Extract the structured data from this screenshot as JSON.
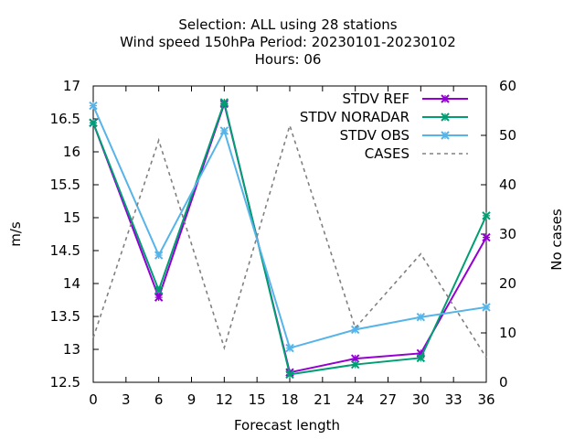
{
  "chart_data": {
    "type": "line",
    "title_lines": [
      "Selection: ALL using    28 stations",
      "Wind speed 150hPa   Period: 20230101-20230102",
      "Hours:  06"
    ],
    "xlabel": "Forecast length",
    "ylabel": "m/s",
    "y2label": "No cases",
    "x": [
      0,
      6,
      12,
      18,
      24,
      30,
      36
    ],
    "xlim": [
      0,
      36
    ],
    "xticks": [
      0,
      3,
      6,
      9,
      12,
      15,
      18,
      21,
      24,
      27,
      30,
      33,
      36
    ],
    "ylim": [
      12.5,
      17
    ],
    "yticks": [
      12.5,
      13,
      13.5,
      14,
      14.5,
      15,
      15.5,
      16,
      16.5,
      17
    ],
    "y2lim": [
      0,
      60
    ],
    "y2ticks": [
      0,
      10,
      20,
      30,
      40,
      50,
      60
    ],
    "grid": false,
    "legend_position": "top-right",
    "series": [
      {
        "name": "STDV REF",
        "axis": "y1",
        "color": "#9400d3",
        "marker": "x",
        "dash": false,
        "values": [
          16.44,
          13.79,
          16.73,
          12.65,
          12.86,
          12.94,
          14.7
        ]
      },
      {
        "name": "STDV NORADAR",
        "axis": "y1",
        "color": "#009e73",
        "marker": "x",
        "dash": false,
        "values": [
          16.44,
          13.9,
          16.75,
          12.62,
          12.77,
          12.87,
          15.03
        ]
      },
      {
        "name": "STDV OBS",
        "axis": "y1",
        "color": "#56b4e9",
        "marker": "x",
        "dash": false,
        "values": [
          16.7,
          14.43,
          16.32,
          13.02,
          13.3,
          13.49,
          13.64
        ]
      },
      {
        "name": "CASES",
        "axis": "y2",
        "color": "#808080",
        "marker": "none",
        "dash": true,
        "values": [
          9,
          49,
          7,
          52,
          11,
          26,
          5
        ]
      }
    ]
  }
}
